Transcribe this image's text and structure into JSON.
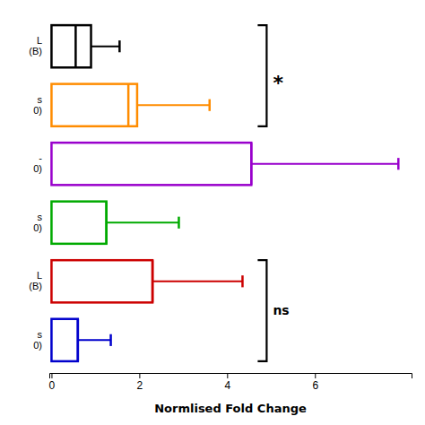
{
  "chart_data": {
    "type": "box",
    "orientation": "horizontal",
    "xlabel": "Normlised Fold Change",
    "categories": [
      "L\n(B)",
      "s\n0)",
      "-\n0)",
      "s\n0)",
      "L\n(B)",
      "s\n0)"
    ],
    "colors": [
      "#000000",
      "#FF8C00",
      "#9900CC",
      "#00AA00",
      "#CC0000",
      "#0000CC"
    ],
    "q1": [
      0.0,
      0.0,
      0.0,
      0.0,
      0.0,
      0.0
    ],
    "median": [
      0.55,
      1.75,
      4.55,
      1.25,
      2.3,
      0.6
    ],
    "q3": [
      0.9,
      1.95,
      4.55,
      1.25,
      2.3,
      0.6
    ],
    "whisker_max": [
      1.55,
      3.6,
      7.9,
      2.9,
      4.35,
      1.35
    ],
    "xlim": [
      -0.05,
      8.2
    ],
    "xticks": [
      0,
      2,
      4,
      6
    ],
    "annotations": [
      {
        "from": 0,
        "to": 1,
        "x": 4.9,
        "label": "*"
      },
      {
        "from": 4,
        "to": 5,
        "x": 4.9,
        "label": "ns"
      }
    ]
  }
}
